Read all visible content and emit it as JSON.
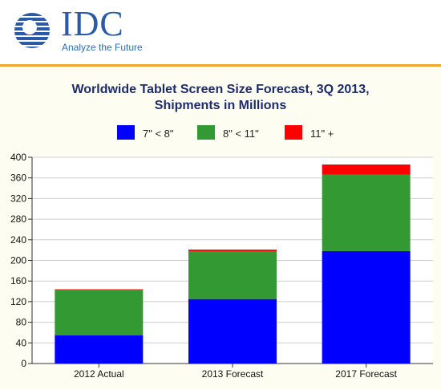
{
  "header": {
    "logo_text": "IDC",
    "tagline": "Analyze the Future",
    "colors": {
      "logo": "#2b5ba8",
      "rule": "#f0a52b"
    }
  },
  "chart_data": {
    "type": "bar",
    "stacked": true,
    "title_line1": "Worldwide Tablet Screen Size Forecast, 3Q 2013,",
    "title_line2": "Shipments in Millions",
    "xlabel": "",
    "ylabel": "",
    "categories": [
      "2012 Actual",
      "2013 Forecast",
      "2017 Forecast"
    ],
    "series": [
      {
        "name": "7\" < 8\"",
        "color": "#0000ff",
        "values": [
          55,
          125,
          218
        ]
      },
      {
        "name": "8\" < 11\"",
        "color": "#339933",
        "values": [
          88,
          93,
          148
        ]
      },
      {
        "name": "11\" +",
        "color": "#ff0000",
        "values": [
          1,
          3,
          20
        ]
      }
    ],
    "ylim": [
      0,
      400
    ],
    "yticks": [
      0,
      40,
      80,
      120,
      160,
      200,
      240,
      280,
      320,
      360,
      400
    ],
    "grid": true,
    "legend_position": "top-center"
  }
}
